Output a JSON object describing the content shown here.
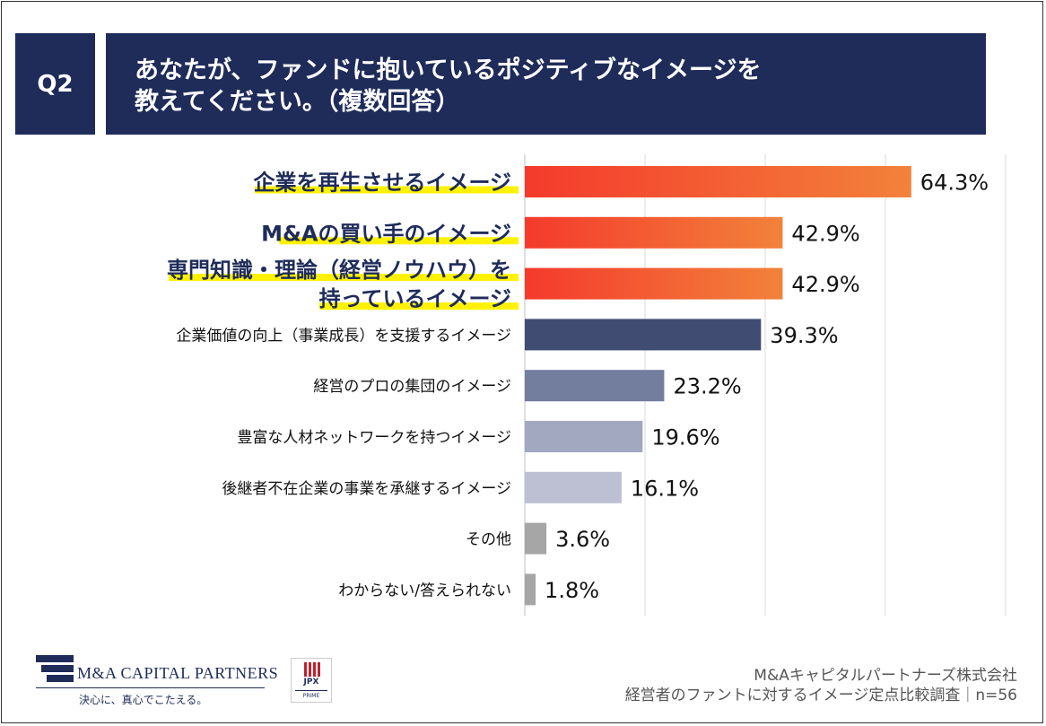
{
  "header": {
    "question_number": "Q2",
    "title_line1": "あなたが、ファンドに抱いているポジティブなイメージを",
    "title_line2": "教えてください。（複数回答）"
  },
  "colors": {
    "header_bg": "#1f2c5a",
    "highlight_label": "#1f2c5a",
    "highlight_marker": "#fff200",
    "bar_gradient_start": "#f43a2c",
    "bar_gradient_end": "#f2823a"
  },
  "chart_data": {
    "type": "bar",
    "orientation": "horizontal",
    "unit": "%",
    "xlim": [
      0,
      40
    ],
    "grid": true,
    "categories": [
      {
        "label": [
          "企業を再生させるイメージ"
        ],
        "value": 64.3,
        "value_label": "64.3%",
        "highlight": true,
        "color": "#f2823a"
      },
      {
        "label": [
          "M&Aの買い手のイメージ"
        ],
        "value": 42.9,
        "value_label": "42.9%",
        "highlight": true,
        "color": "#f2823a"
      },
      {
        "label": [
          "専門知識・理論（経営ノウハウ）を",
          "持っているイメージ"
        ],
        "value": 42.9,
        "value_label": "42.9%",
        "highlight": true,
        "color": "#f2823a"
      },
      {
        "label": [
          "企業価値の向上（事業成長）を支援するイメージ"
        ],
        "value": 39.3,
        "value_label": "39.3%",
        "highlight": false,
        "color": "#414c73"
      },
      {
        "label": [
          "経営のプロの集団のイメージ"
        ],
        "value": 23.2,
        "value_label": "23.2%",
        "highlight": false,
        "color": "#737d9e"
      },
      {
        "label": [
          "豊富な人材ネットワークを持つイメージ"
        ],
        "value": 19.6,
        "value_label": "19.6%",
        "highlight": false,
        "color": "#a2a8c0"
      },
      {
        "label": [
          "後継者不在企業の事業を承継するイメージ"
        ],
        "value": 16.1,
        "value_label": "16.1%",
        "highlight": false,
        "color": "#bcc0d2"
      },
      {
        "label": [
          "その他"
        ],
        "value": 3.6,
        "value_label": "3.6%",
        "highlight": false,
        "color": "#a6a6a6"
      },
      {
        "label": [
          "わからない/答えられない"
        ],
        "value": 1.8,
        "value_label": "1.8%",
        "highlight": false,
        "color": "#a6a6a6"
      }
    ]
  },
  "footer": {
    "logo_text": "M&A CAPITAL PARTNERS",
    "logo_tagline": "決心に、真心でこたえる。",
    "jpx_code": "JPX",
    "jpx_market": "PRIME",
    "source_company": "M&Aキャピタルパートナーズ株式会社",
    "source_survey": "経営者のファントに対するイメージ定点比較調査｜n=56"
  }
}
